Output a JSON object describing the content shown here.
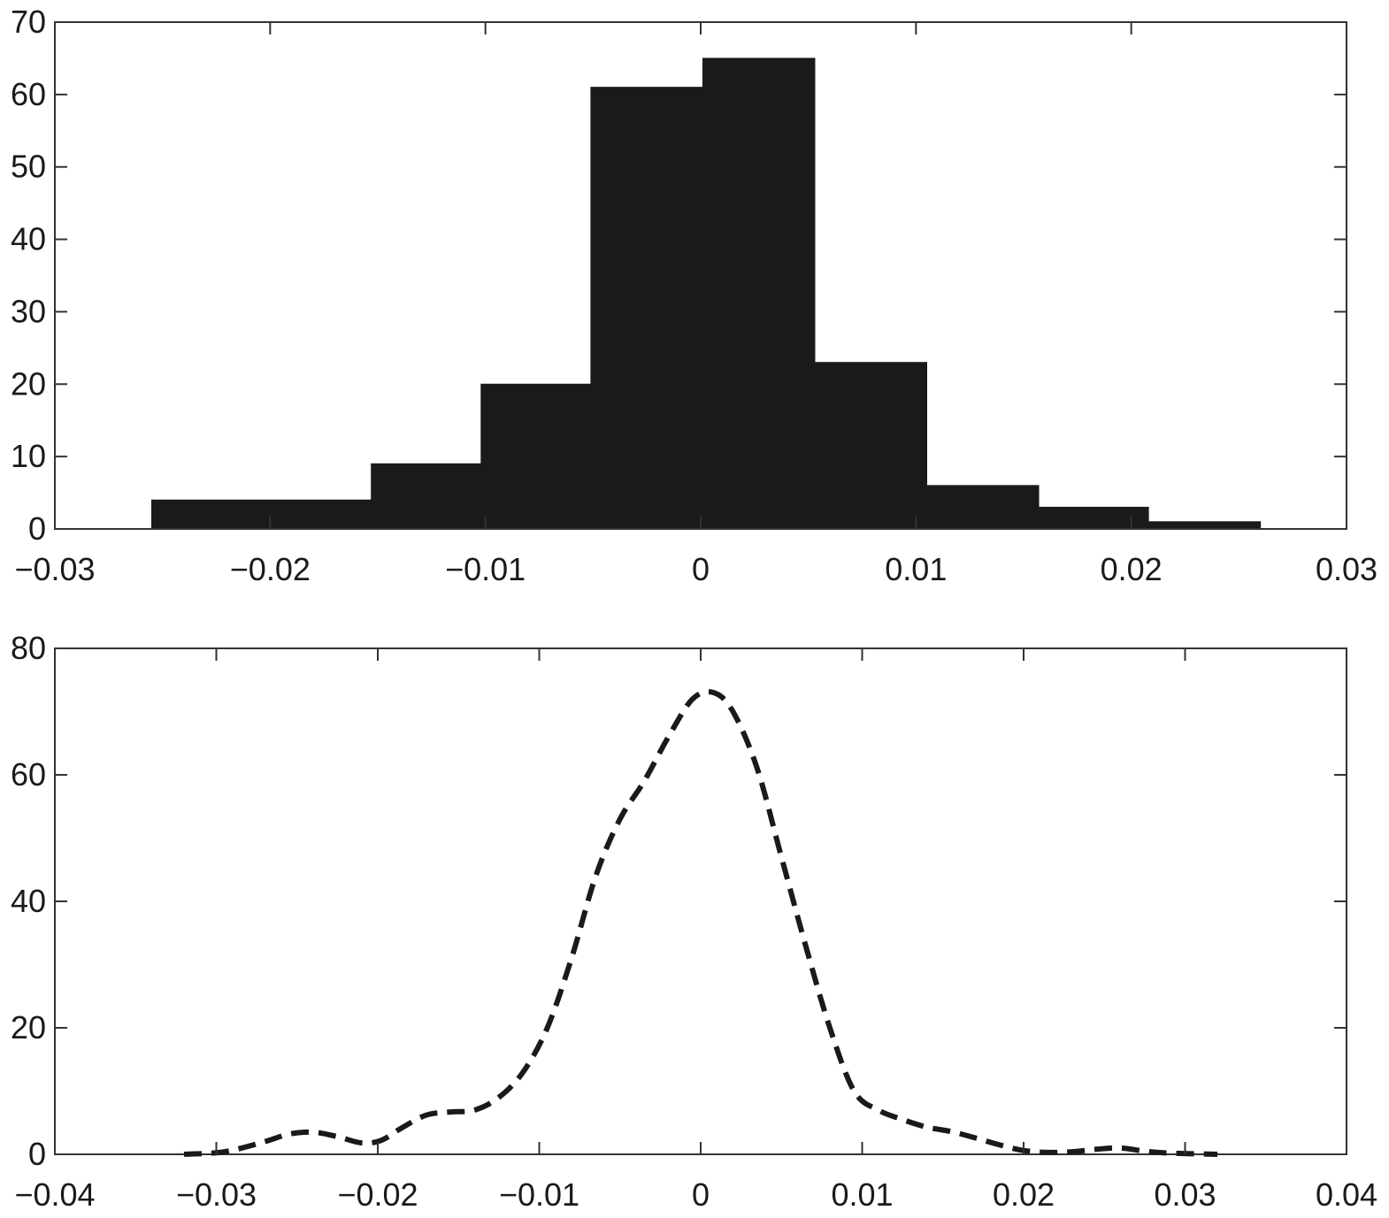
{
  "chart_data": [
    {
      "type": "bar",
      "subtype": "histogram",
      "bins": [
        {
          "x0": -0.0255,
          "x1": -0.0153,
          "count": 4
        },
        {
          "x0": -0.0153,
          "x1": -0.0102,
          "count": 9
        },
        {
          "x0": -0.0102,
          "x1": -0.0051,
          "count": 20
        },
        {
          "x0": -0.0051,
          "x1": 0.0001,
          "count": 61
        },
        {
          "x0": 0.0001,
          "x1": 0.0053,
          "count": 65
        },
        {
          "x0": 0.0053,
          "x1": 0.0105,
          "count": 23
        },
        {
          "x0": 0.0105,
          "x1": 0.0157,
          "count": 6
        },
        {
          "x0": 0.0157,
          "x1": 0.0208,
          "count": 3
        },
        {
          "x0": 0.0208,
          "x1": 0.026,
          "count": 1
        }
      ],
      "xlim": [
        -0.03,
        0.03
      ],
      "ylim": [
        0,
        70
      ],
      "xticks": [
        -0.03,
        -0.02,
        -0.01,
        0,
        0.01,
        0.02,
        0.03
      ],
      "xtick_labels": [
        "−0.03",
        "−0.02",
        "−0.01",
        "0",
        "0.01",
        "0.02",
        "0.03"
      ],
      "yticks": [
        0,
        10,
        20,
        30,
        40,
        50,
        60,
        70
      ],
      "ytick_labels": [
        "0",
        "10",
        "20",
        "30",
        "40",
        "50",
        "60",
        "70"
      ],
      "fill_color": "#1a1a1a",
      "grid": false
    },
    {
      "type": "line",
      "style": "dashed",
      "line_color": "#1a1a1a",
      "x": [
        -0.032,
        -0.0295,
        -0.027,
        -0.0255,
        -0.024,
        -0.0225,
        -0.021,
        -0.0198,
        -0.0185,
        -0.017,
        -0.0155,
        -0.014,
        -0.0125,
        -0.011,
        -0.0095,
        -0.008,
        -0.0065,
        -0.005,
        -0.0035,
        -0.002,
        -0.0005,
        0.0008,
        0.002,
        0.0035,
        0.005,
        0.0065,
        0.008,
        0.0095,
        0.011,
        0.0125,
        0.014,
        0.0155,
        0.017,
        0.0185,
        0.02,
        0.0215,
        0.023,
        0.0245,
        0.026,
        0.0275,
        0.029,
        0.032
      ],
      "y": [
        0,
        0.4,
        2,
        3.2,
        3.5,
        2.8,
        1.8,
        2.2,
        4.2,
        6.2,
        6.7,
        7,
        9,
        13,
        20,
        31,
        44,
        53,
        59,
        66,
        72,
        73,
        70,
        61,
        47,
        33,
        20,
        10,
        7,
        5.5,
        4.3,
        3.6,
        2.6,
        1.5,
        0.6,
        0.3,
        0.4,
        0.8,
        1,
        0.5,
        0.2,
        0
      ],
      "xlim": [
        -0.04,
        0.04
      ],
      "ylim": [
        0,
        80
      ],
      "xticks": [
        -0.04,
        -0.03,
        -0.02,
        -0.01,
        0,
        0.01,
        0.02,
        0.03,
        0.04
      ],
      "xtick_labels": [
        "−0.04",
        "−0.03",
        "−0.02",
        "−0.01",
        "0",
        "0.01",
        "0.02",
        "0.03",
        "0.04"
      ],
      "yticks": [
        0,
        20,
        40,
        60,
        80
      ],
      "ytick_labels": [
        "0",
        "20",
        "40",
        "60",
        "80"
      ],
      "grid": false
    }
  ]
}
